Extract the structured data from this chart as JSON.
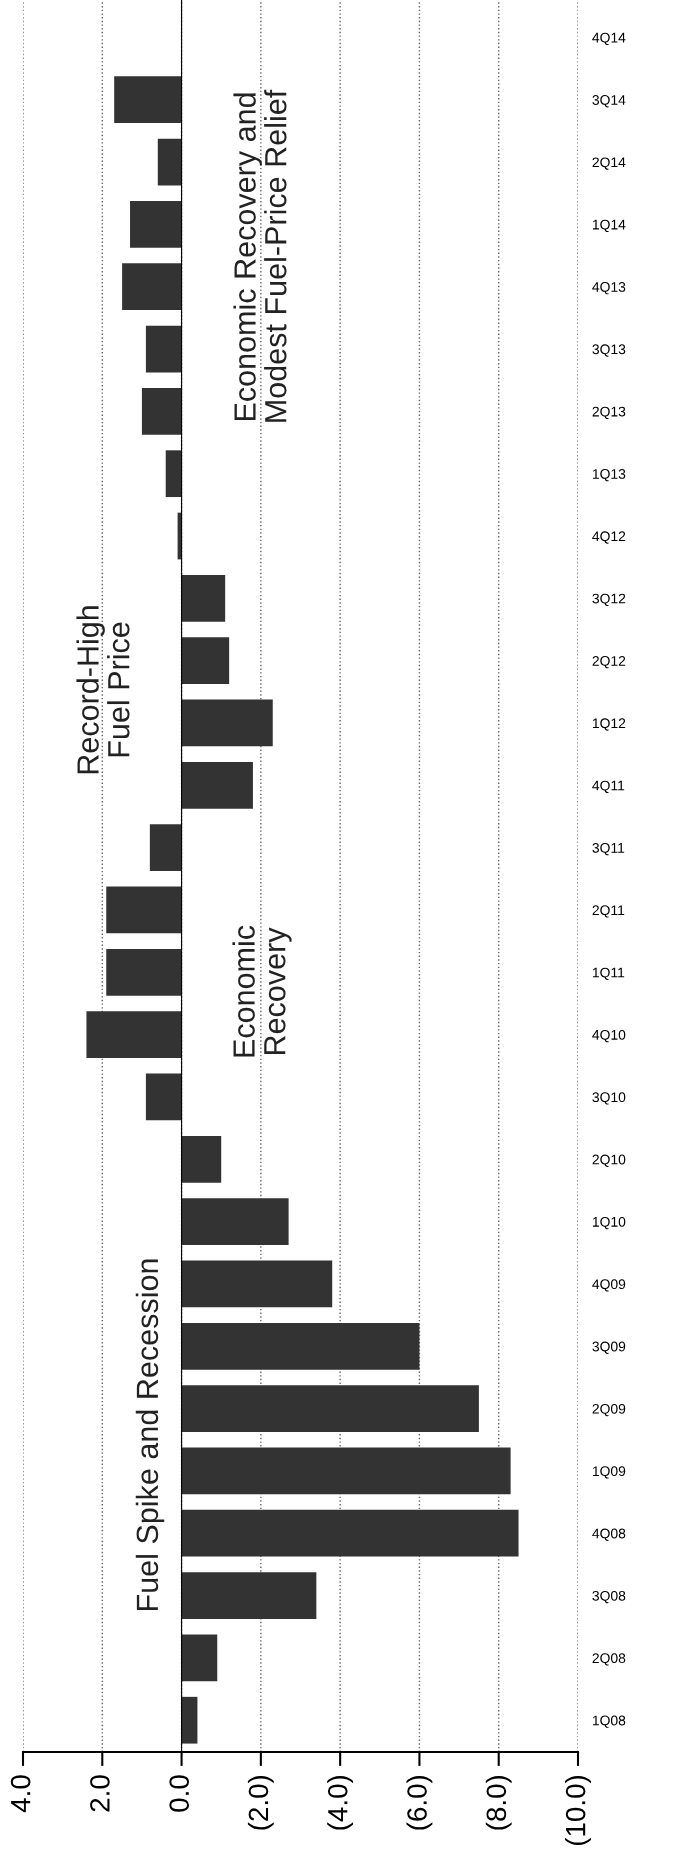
{
  "chart_data": {
    "type": "bar",
    "orientation": "horizontal",
    "categories": [
      "4Q14",
      "3Q14",
      "2Q14",
      "1Q14",
      "4Q13",
      "3Q13",
      "2Q13",
      "1Q13",
      "4Q12",
      "3Q12",
      "2Q12",
      "1Q12",
      "4Q11",
      "3Q11",
      "2Q11",
      "1Q11",
      "4Q10",
      "3Q10",
      "2Q10",
      "1Q10",
      "4Q09",
      "3Q09",
      "2Q09",
      "1Q09",
      "4Q08",
      "3Q08",
      "2Q08",
      "1Q08"
    ],
    "values": [
      null,
      1.7,
      0.6,
      1.3,
      1.5,
      0.9,
      1.0,
      0.4,
      0.1,
      -1.1,
      -1.2,
      -2.3,
      -1.8,
      0.8,
      1.9,
      1.9,
      2.4,
      0.9,
      -1.0,
      -2.7,
      -3.8,
      -6.0,
      -7.5,
      -8.3,
      -8.5,
      -3.4,
      -0.9,
      -0.4
    ],
    "color": "#333333",
    "xlim": [
      4,
      -10
    ],
    "xticks": [
      {
        "value": 4,
        "label": "4.0"
      },
      {
        "value": 2,
        "label": "2.0"
      },
      {
        "value": 0,
        "label": "0.0"
      },
      {
        "value": -2,
        "label": "(2.0)"
      },
      {
        "value": -4,
        "label": "(4.0)"
      },
      {
        "value": -6,
        "label": "(6.0)"
      },
      {
        "value": -8,
        "label": "(8.0)"
      },
      {
        "value": -10,
        "label": "(10.0)"
      }
    ],
    "grid": "x",
    "annotations": [
      "Economic Recovery and\nModest Fuel-Price Relief",
      "Record-High\nFuel Price",
      "Economic\nRecovery",
      "Fuel Spike and Recession"
    ]
  }
}
